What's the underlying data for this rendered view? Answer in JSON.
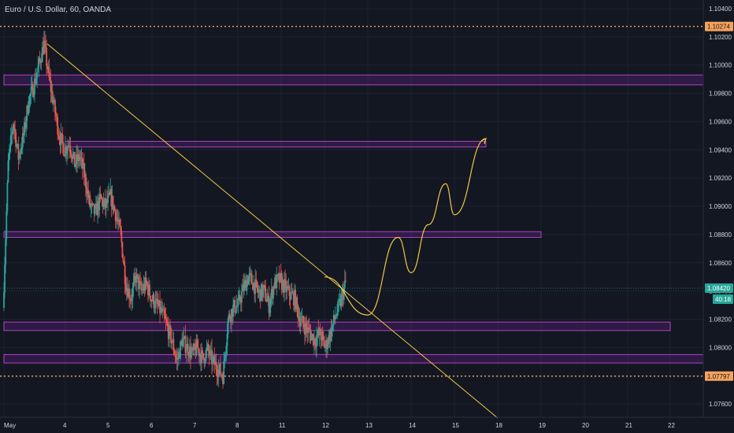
{
  "header": {
    "title": "Euro / U.S. Dollar, 60, OANDA"
  },
  "colors": {
    "background": "#131722",
    "up": "#26a69a",
    "down": "#ef5350",
    "zone_fill": "rgba(123, 31, 162, 0.28)",
    "zone_border": "#ab47bc",
    "trendline": "#f2c744",
    "projection": "#f2c744",
    "level_dotted": "#f5a35b",
    "current_line": "#26a69a"
  },
  "chart_data": {
    "type": "candlestick",
    "symbol": "Euro / U.S. Dollar",
    "interval": "60",
    "source": "OANDA",
    "ylim": [
      1.0745,
      1.1045
    ],
    "y_ticks": [
      "1.10400",
      "1.10200",
      "1.10000",
      "1.09800",
      "1.09600",
      "1.09400",
      "1.09200",
      "1.09000",
      "1.08800",
      "1.08600",
      "1.08400",
      "1.08200",
      "1.08000",
      "1.07800",
      "1.07600"
    ],
    "x_ticks": [
      "May",
      "4",
      "5",
      "6",
      "7",
      "8",
      "11",
      "12",
      "13",
      "14",
      "15",
      "18",
      "19",
      "20",
      "21",
      "22"
    ],
    "current_price": "1.08420",
    "countdown": "40:18",
    "price_levels": [
      {
        "price": 1.10274,
        "label": "1.10274",
        "style": "dotted"
      },
      {
        "price": 1.07797,
        "label": "1.07797",
        "style": "dotted"
      }
    ],
    "zones": [
      {
        "top": 1.0993,
        "bottom": 1.0986,
        "x_start": "May",
        "x_end": "right-edge"
      },
      {
        "top": 1.0946,
        "bottom": 1.0942,
        "x_start": "4",
        "x_end": "17"
      },
      {
        "top": 1.0882,
        "bottom": 1.0878,
        "x_start": "May",
        "x_end": "19"
      },
      {
        "top": 1.0818,
        "bottom": 1.0812,
        "x_start": "May",
        "x_end": "22"
      },
      {
        "top": 1.0795,
        "bottom": 1.0789,
        "x_start": "May",
        "x_end": "right-edge"
      }
    ],
    "trendline": {
      "from": {
        "x": "3",
        "y": 1.1015
      },
      "to": {
        "x": "18",
        "y": 1.075
      }
    },
    "projection_path": [
      {
        "x": "12",
        "y": 1.085
      },
      {
        "x": "13",
        "y": 1.0823
      },
      {
        "x": "13.7",
        "y": 1.0878
      },
      {
        "x": "14",
        "y": 1.0853
      },
      {
        "x": "14.4",
        "y": 1.0887
      },
      {
        "x": "14.8",
        "y": 1.0916
      },
      {
        "x": "15",
        "y": 1.0894
      },
      {
        "x": "17",
        "y": 1.0948
      }
    ],
    "candles_path": [
      1.0828,
      1.093,
      1.096,
      1.0935,
      1.095,
      1.0975,
      1.0985,
      1.1,
      1.1015,
      1.099,
      1.097,
      1.095,
      1.094,
      1.0945,
      1.093,
      1.0935,
      1.092,
      1.09,
      1.0895,
      1.0905,
      1.09,
      1.0907,
      1.0895,
      1.088,
      1.0845,
      1.0835,
      1.085,
      1.084,
      1.0845,
      1.0835,
      1.083,
      1.0825,
      1.0815,
      1.0805,
      1.079,
      1.0805,
      1.08,
      1.0795,
      1.08,
      1.0792,
      1.0798,
      1.079,
      1.0785,
      1.078,
      1.082,
      1.0828,
      1.083,
      1.0842,
      1.085,
      1.0845,
      1.0838,
      1.084,
      1.083,
      1.0845,
      1.0848,
      1.0843,
      1.0838,
      1.0835,
      1.082,
      1.0815,
      1.081,
      1.0805,
      1.081,
      1.08,
      1.081,
      1.0822,
      1.0832,
      1.0846
    ]
  }
}
